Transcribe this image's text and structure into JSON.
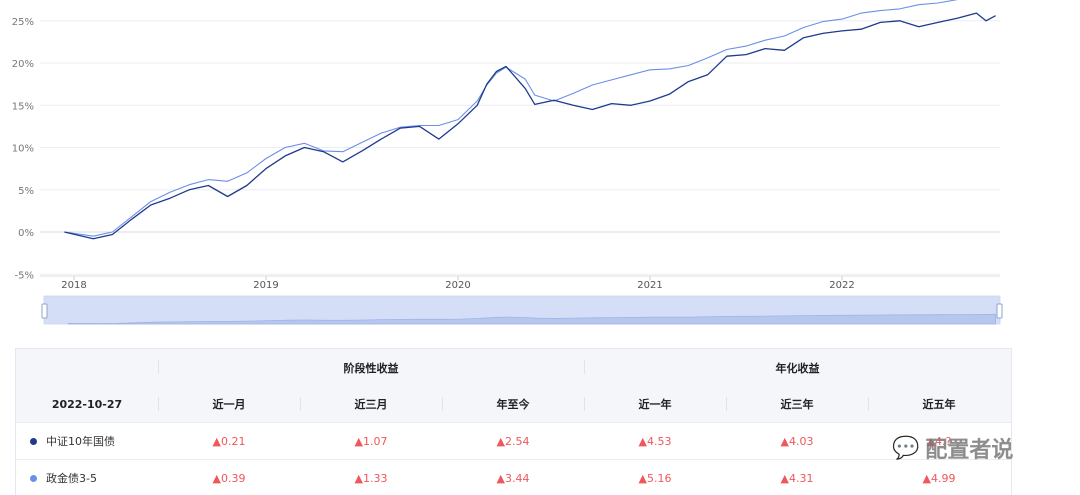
{
  "chart_data": {
    "type": "line",
    "title": "",
    "xlabel": "",
    "ylabel": "",
    "x_ticks": [
      "2018",
      "2019",
      "2020",
      "2021",
      "2022"
    ],
    "y_ticks": [
      "25%",
      "20%",
      "15%",
      "10%",
      "5%",
      "0%",
      "-5%"
    ],
    "ylim": [
      -5,
      27.5
    ],
    "grid": true,
    "series": [
      {
        "name": "中证10年国债",
        "color": "#1f3a8c",
        "x": [
          2017.95,
          2018.1,
          2018.2,
          2018.3,
          2018.4,
          2018.5,
          2018.6,
          2018.7,
          2018.8,
          2018.9,
          2019.0,
          2019.1,
          2019.2,
          2019.3,
          2019.4,
          2019.5,
          2019.6,
          2019.7,
          2019.8,
          2019.9,
          2020.0,
          2020.1,
          2020.15,
          2020.2,
          2020.25,
          2020.35,
          2020.4,
          2020.5,
          2020.6,
          2020.7,
          2020.8,
          2020.9,
          2021.0,
          2021.1,
          2021.2,
          2021.3,
          2021.4,
          2021.5,
          2021.6,
          2021.7,
          2021.8,
          2021.9,
          2022.0,
          2022.1,
          2022.2,
          2022.3,
          2022.4,
          2022.5,
          2022.6,
          2022.7,
          2022.75,
          2022.8
        ],
        "y": [
          0,
          -0.8,
          -0.3,
          1.5,
          3.2,
          4.0,
          5.0,
          5.5,
          4.2,
          5.5,
          7.5,
          9.0,
          10.0,
          9.5,
          8.3,
          9.6,
          11.0,
          12.3,
          12.5,
          11.0,
          12.8,
          15.0,
          17.5,
          19.0,
          19.6,
          17.0,
          15.1,
          15.6,
          15.0,
          14.5,
          15.2,
          15.0,
          15.5,
          16.3,
          17.8,
          18.6,
          20.8,
          21.0,
          21.7,
          21.5,
          23.0,
          23.5,
          23.8,
          24.0,
          24.8,
          25.0,
          24.3,
          24.8,
          25.3,
          25.9,
          25.0,
          25.6
        ]
      },
      {
        "name": "政金债3-5",
        "color": "#6b8fe6",
        "x": [
          2017.95,
          2018.1,
          2018.2,
          2018.3,
          2018.4,
          2018.5,
          2018.6,
          2018.7,
          2018.8,
          2018.9,
          2019.0,
          2019.1,
          2019.2,
          2019.3,
          2019.4,
          2019.5,
          2019.6,
          2019.7,
          2019.8,
          2019.9,
          2020.0,
          2020.1,
          2020.15,
          2020.2,
          2020.25,
          2020.35,
          2020.4,
          2020.5,
          2020.6,
          2020.7,
          2020.8,
          2020.9,
          2021.0,
          2021.1,
          2021.2,
          2021.3,
          2021.4,
          2021.5,
          2021.6,
          2021.7,
          2021.8,
          2021.9,
          2022.0,
          2022.1,
          2022.2,
          2022.3,
          2022.4,
          2022.5,
          2022.6,
          2022.7,
          2022.75,
          2022.8
        ],
        "y": [
          0,
          -0.5,
          0,
          1.8,
          3.6,
          4.7,
          5.6,
          6.2,
          6.0,
          7.0,
          8.7,
          10.0,
          10.5,
          9.6,
          9.5,
          10.6,
          11.7,
          12.4,
          12.6,
          12.6,
          13.3,
          15.5,
          17.4,
          18.8,
          19.5,
          18.1,
          16.2,
          15.5,
          16.4,
          17.4,
          18.0,
          18.6,
          19.2,
          19.3,
          19.7,
          20.6,
          21.6,
          22.0,
          22.7,
          23.2,
          24.2,
          24.9,
          25.2,
          25.9,
          26.2,
          26.4,
          26.9,
          27.1,
          27.5,
          27.8,
          28.0,
          28.2
        ]
      }
    ]
  },
  "table": {
    "group_left": "阶段性收益",
    "group_right": "年化收益",
    "date": "2022-10-27",
    "columns": [
      "近一月",
      "近三月",
      "年至今",
      "近一年",
      "近三年",
      "近五年"
    ],
    "rows": [
      {
        "name": "中证10年国债",
        "color": "#1f3a8c",
        "values": [
          "▲0.21",
          "▲1.07",
          "▲2.54",
          "▲4.53",
          "▲4.03",
          "▲4.?"
        ]
      },
      {
        "name": "政金债3-5",
        "color": "#6b8fe6",
        "values": [
          "▲0.39",
          "▲1.33",
          "▲3.44",
          "▲5.16",
          "▲4.31",
          "▲4.99"
        ]
      }
    ]
  },
  "watermark": {
    "text": "配置者说",
    "icon": "wechat-icon"
  }
}
